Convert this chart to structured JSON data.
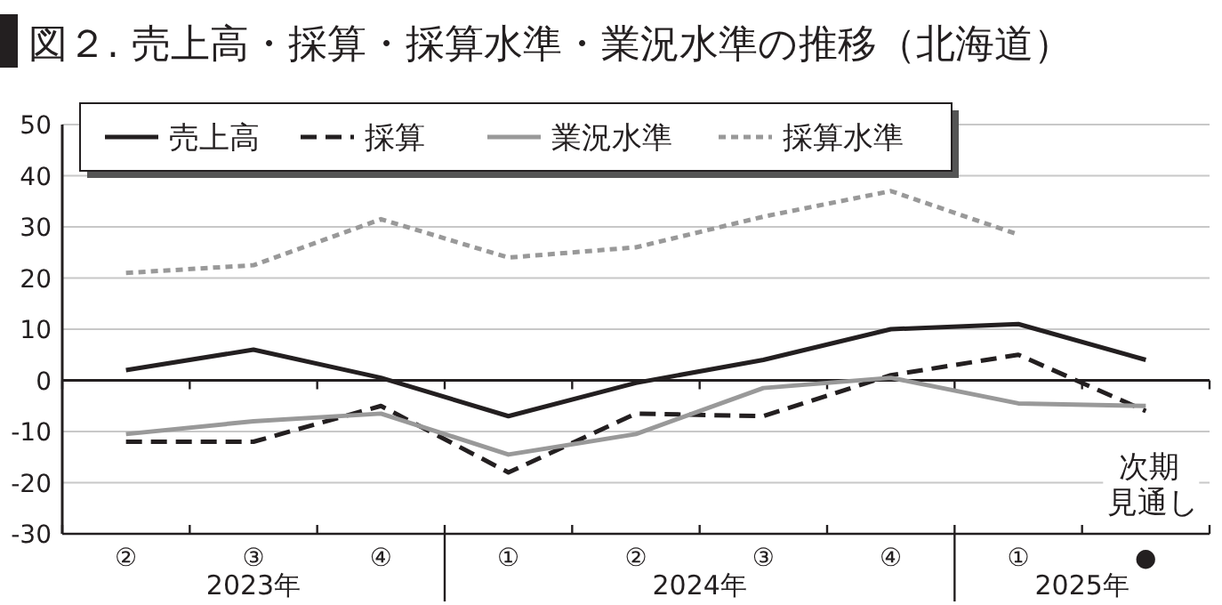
{
  "chart_data": {
    "type": "line",
    "title": "図２. 売上高・採算・採算水準・業況水準の推移（北海道）",
    "categories": [
      "②",
      "③",
      "④",
      "①",
      "②",
      "③",
      "④",
      "①",
      "●"
    ],
    "series": [
      {
        "name": "売上高",
        "color": "#231f20",
        "line_style": "solid",
        "values": [
          2,
          6,
          0.5,
          -7,
          -0.5,
          4,
          10,
          11,
          4
        ]
      },
      {
        "name": "採算",
        "color": "#231f20",
        "line_style": "dashed",
        "values": [
          -12,
          -12,
          -5,
          -18,
          -6.5,
          -7,
          1,
          5,
          -6
        ]
      },
      {
        "name": "業況水準",
        "color": "#999999",
        "line_style": "solid",
        "values": [
          -10.5,
          -8,
          -6.5,
          -14.5,
          -10.5,
          -1.5,
          0.5,
          -4.5,
          -5
        ]
      },
      {
        "name": "採算水準",
        "color": "#999999",
        "line_style": "dotted",
        "values": [
          21,
          22.5,
          31.5,
          24,
          26,
          32,
          37,
          28.5,
          null
        ]
      }
    ],
    "ylim": [
      -30,
      50
    ],
    "yticks": [
      -30,
      -20,
      -10,
      0,
      10,
      20,
      30,
      40,
      50
    ],
    "grid": "y",
    "legend": "top left",
    "marker": "none",
    "annotations": [
      "2023年",
      "2024年",
      "2025年",
      "次期見通し"
    ]
  }
}
